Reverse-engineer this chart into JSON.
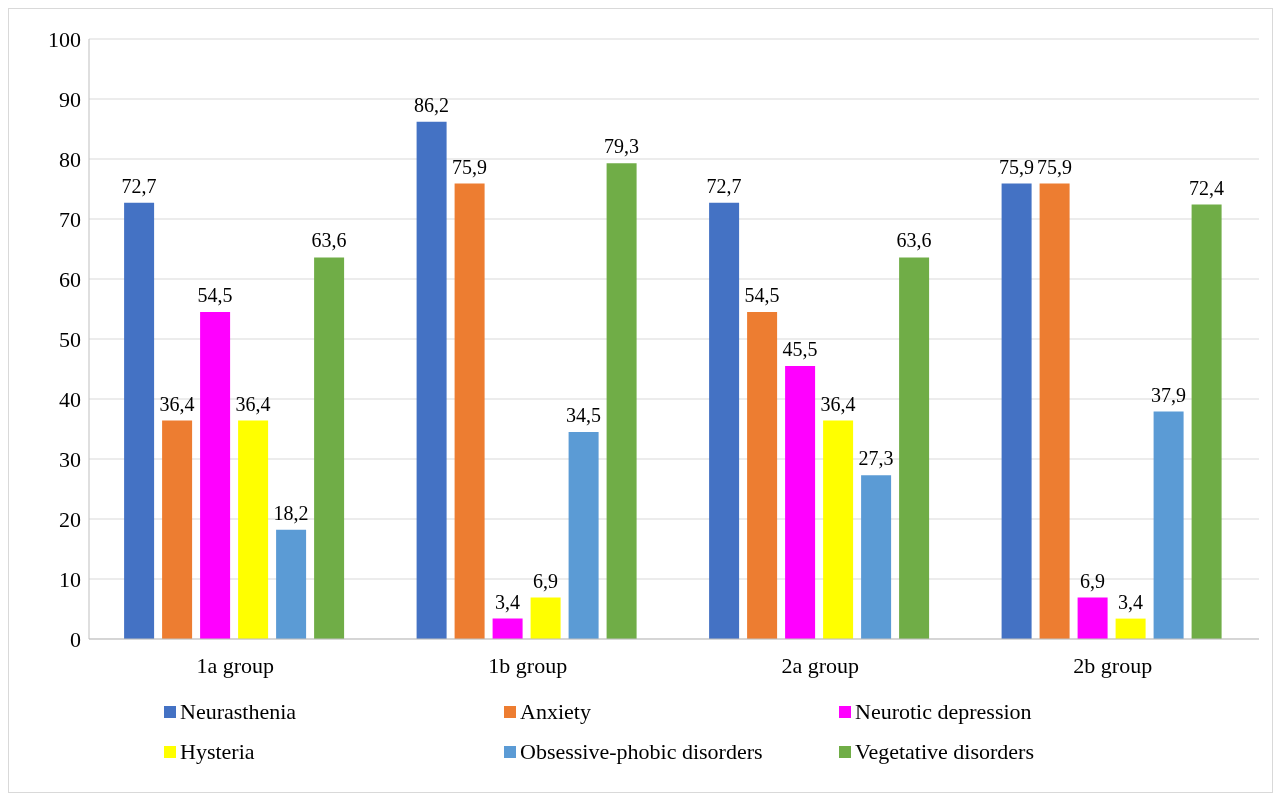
{
  "chart_data": {
    "type": "bar",
    "categories": [
      "1a group",
      "1b group",
      "2a group",
      "2b group"
    ],
    "series": [
      {
        "name": "Neurasthenia",
        "color": "#4472c4",
        "values": [
          72.7,
          86.2,
          72.7,
          75.9
        ],
        "value_labels": [
          "72,7",
          "86,2",
          "72,7",
          "75,9"
        ]
      },
      {
        "name": "Anxiety",
        "color": "#ed7d31",
        "values": [
          36.4,
          75.9,
          54.5,
          75.9
        ],
        "value_labels": [
          "36,4",
          "75,9",
          "54,5",
          "75,9"
        ]
      },
      {
        "name": "Neurotic depression",
        "color": "#ff00ff",
        "values": [
          54.5,
          3.4,
          45.5,
          6.9
        ],
        "value_labels": [
          "54,5",
          "3,4",
          "45,5",
          "6,9"
        ]
      },
      {
        "name": "Hysteria",
        "color": "#ffff00",
        "values": [
          36.4,
          6.9,
          36.4,
          3.4
        ],
        "value_labels": [
          "36,4",
          "6,9",
          "36,4",
          "3,4"
        ]
      },
      {
        "name": "Obsessive-phobic disorders",
        "color": "#5b9bd5",
        "values": [
          18.2,
          34.5,
          27.3,
          37.9
        ],
        "value_labels": [
          "18,2",
          "34,5",
          "27,3",
          "37,9"
        ]
      },
      {
        "name": "Vegetative disorders",
        "color": "#70ad47",
        "values": [
          63.6,
          79.3,
          63.6,
          72.4
        ],
        "value_labels": [
          "63,6",
          "79,3",
          "63,6",
          "72,4"
        ]
      }
    ],
    "ylim": [
      0,
      100
    ],
    "yticks": [
      0,
      10,
      20,
      30,
      40,
      50,
      60,
      70,
      80,
      90,
      100
    ],
    "grid": "y",
    "legend": "bottom"
  }
}
